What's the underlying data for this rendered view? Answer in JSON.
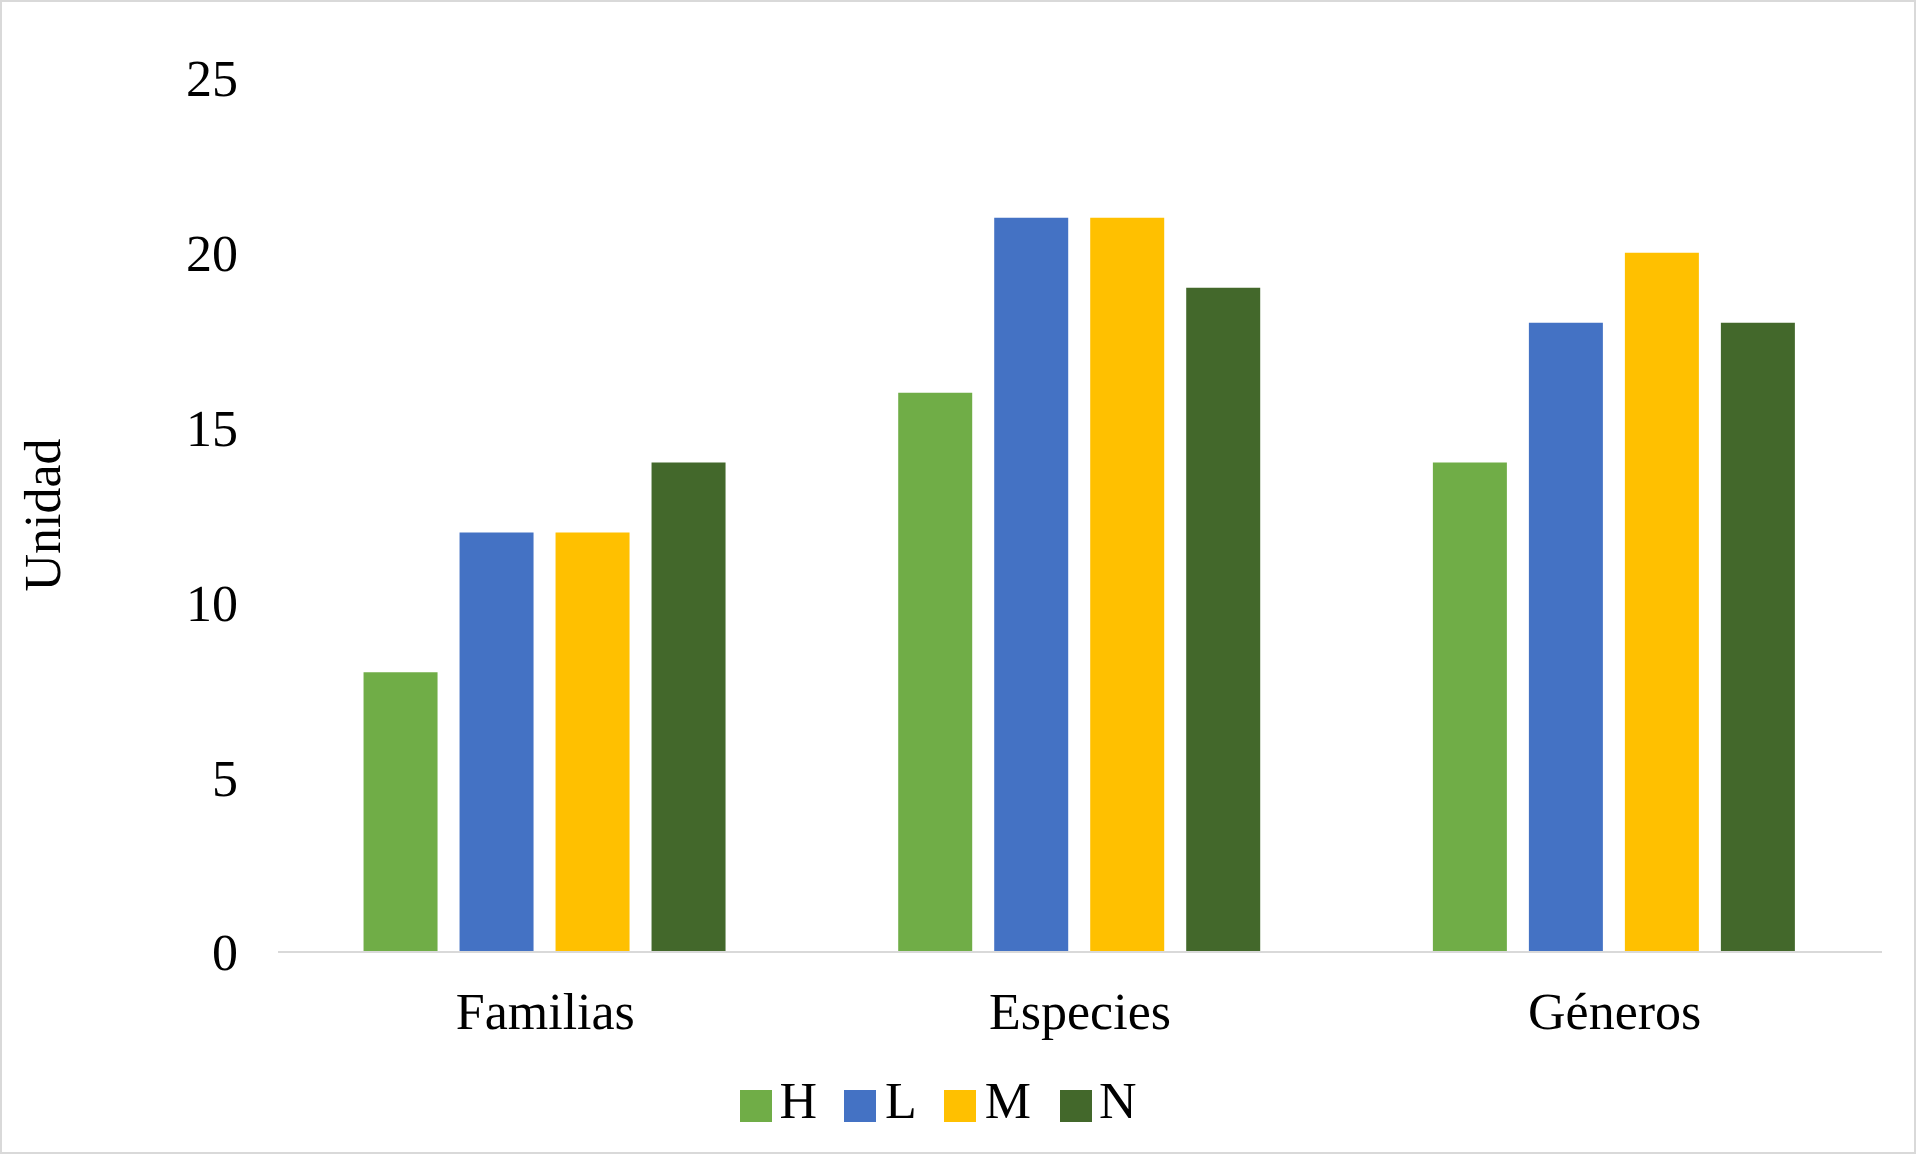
{
  "chart_data": {
    "type": "bar",
    "ylabel": "Unidad",
    "categories": [
      "Familias",
      "Especies",
      "Géneros"
    ],
    "series": [
      {
        "name": "H",
        "color": "#70ad47",
        "values": [
          8,
          16,
          14
        ]
      },
      {
        "name": "L",
        "color": "#4472c4",
        "values": [
          12,
          21,
          18
        ]
      },
      {
        "name": "M",
        "color": "#ffc000",
        "values": [
          12,
          21,
          20
        ]
      },
      {
        "name": "N",
        "color": "#43682b",
        "values": [
          14,
          19,
          18
        ]
      }
    ],
    "ylim": [
      0,
      25
    ],
    "yticks": [
      0,
      5,
      10,
      15,
      20,
      25
    ],
    "grid": false,
    "legend": "bottom"
  }
}
